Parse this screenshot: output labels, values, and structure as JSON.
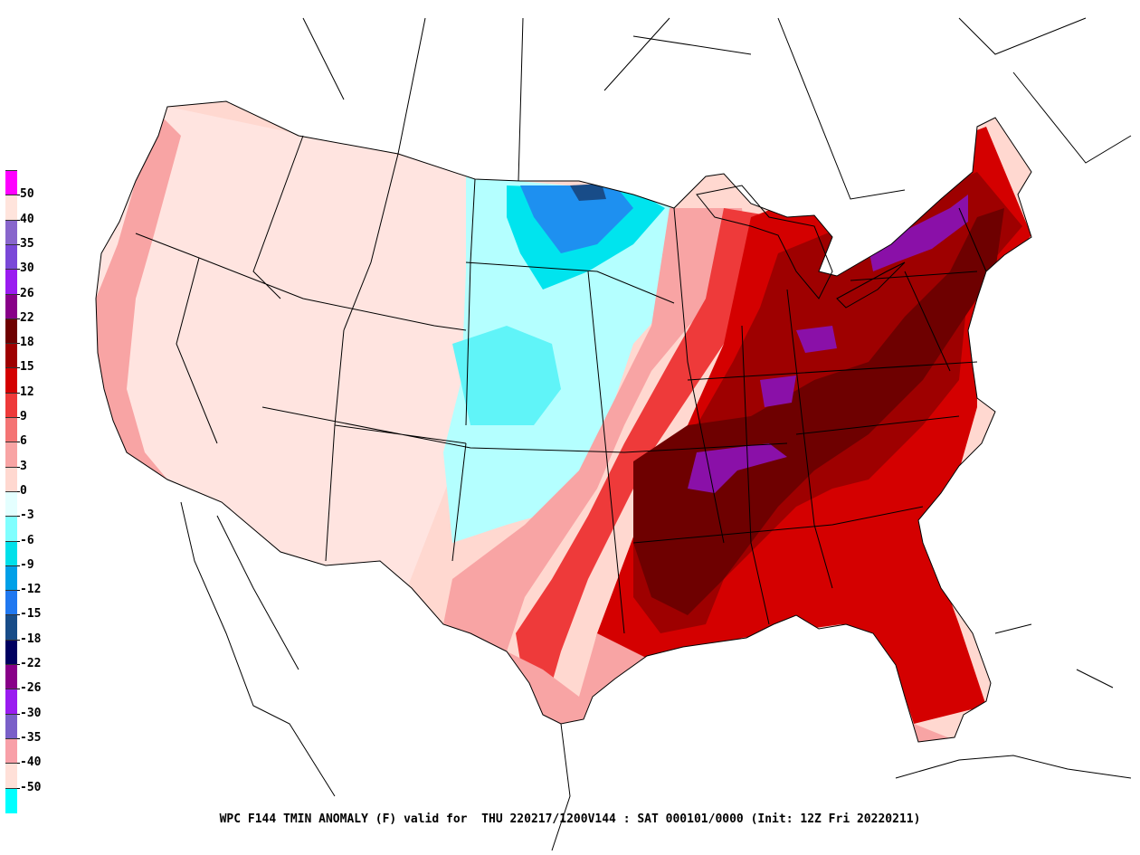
{
  "caption": "WPC F144 TMIN ANOMALY (F) valid for  THU 220217/1200V144 : SAT 000101/0000 (Init: 12Z Fri 20220211)",
  "legend": {
    "labels": [
      "50",
      "40",
      "35",
      "30",
      "26",
      "22",
      "18",
      "15",
      "12",
      "9",
      "6",
      "3",
      "0",
      "-3",
      "-6",
      "-9",
      "-12",
      "-15",
      "-18",
      "-22",
      "-26",
      "-30",
      "-35",
      "-40",
      "-50"
    ],
    "colors": [
      "#ff00ff",
      "#ffe4dc",
      "#8866cc",
      "#7a48d8",
      "#9a1cf0",
      "#880088",
      "#6e0000",
      "#9e0000",
      "#d40000",
      "#ee3a3a",
      "#f47474",
      "#f8a4a4",
      "#ffd8d0",
      "#e4ffff",
      "#80ffff",
      "#00e0ea",
      "#00a0e8",
      "#2078f0",
      "#184c88",
      "#000060",
      "#880088",
      "#9a1cf0",
      "#7a60c8",
      "#f8a0a8",
      "#ffe0d8",
      "#00ffff"
    ]
  },
  "colors": {
    "strong_warm": "#6e0000",
    "warm": "#b00000",
    "mild_warm": "#f8a4a4",
    "neutral": "#ffe8e4",
    "cool": "#a8ffff",
    "cold": "#00e0ea",
    "very_cold": "#2078f0",
    "purple": "#8a10a8",
    "borders": "#000000"
  }
}
